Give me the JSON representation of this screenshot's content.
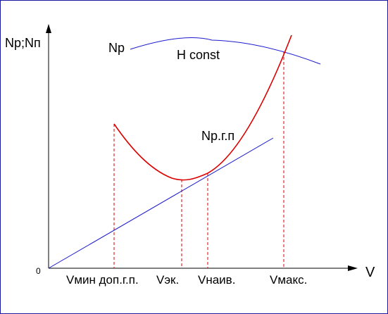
{
  "chart_data": {
    "type": "line",
    "ylabel": "Np;Nп",
    "xlabel": "V",
    "origin_label": "0",
    "annotation": "H const",
    "curves": [
      {
        "name": "Np",
        "color": "#1a1ad0"
      },
      {
        "name": "Np.г.п",
        "color": "#dd0000"
      },
      {
        "name": "",
        "color": "#1a1ad0"
      }
    ],
    "markers": [
      {
        "label": "Vмин доп.г.п."
      },
      {
        "label": "Vэк."
      },
      {
        "label": "Vнаив."
      },
      {
        "label": "Vмакс."
      }
    ]
  }
}
